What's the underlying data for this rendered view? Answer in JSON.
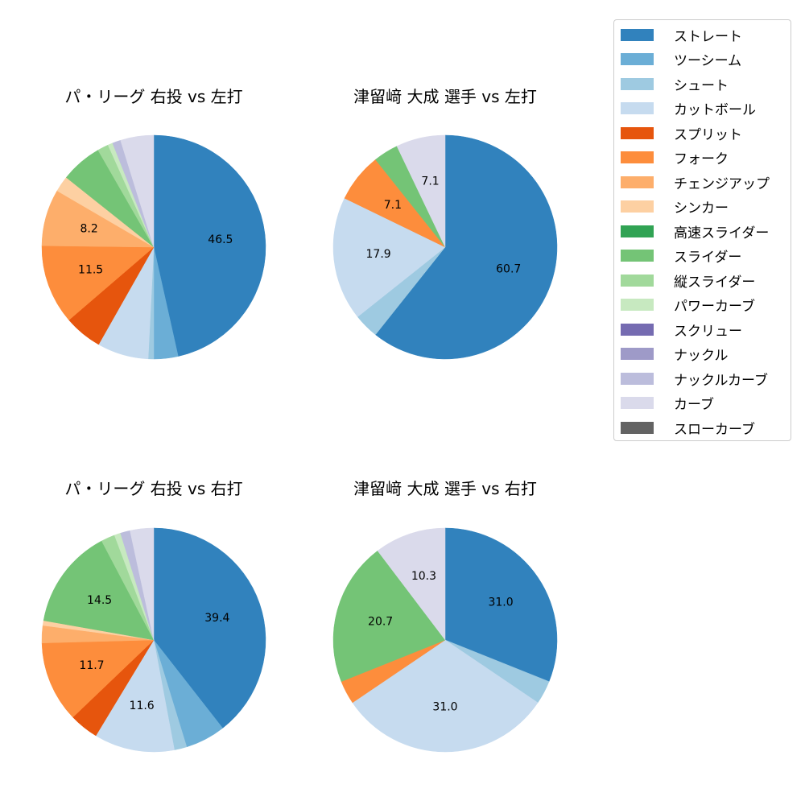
{
  "legend": {
    "items": [
      {
        "label": "ストレート",
        "color": "#3182bd"
      },
      {
        "label": "ツーシーム",
        "color": "#6baed6"
      },
      {
        "label": "シュート",
        "color": "#9ecae1"
      },
      {
        "label": "カットボール",
        "color": "#c6dbef"
      },
      {
        "label": "スプリット",
        "color": "#e6550d"
      },
      {
        "label": "フォーク",
        "color": "#fd8d3c"
      },
      {
        "label": "チェンジアップ",
        "color": "#fdae6b"
      },
      {
        "label": "シンカー",
        "color": "#fdd0a2"
      },
      {
        "label": "高速スライダー",
        "color": "#31a354"
      },
      {
        "label": "スライダー",
        "color": "#74c476"
      },
      {
        "label": "縦スライダー",
        "color": "#a1d99b"
      },
      {
        "label": "パワーカーブ",
        "color": "#c7e9c0"
      },
      {
        "label": "スクリュー",
        "color": "#756bb1"
      },
      {
        "label": "ナックル",
        "color": "#9e9ac8"
      },
      {
        "label": "ナックルカーブ",
        "color": "#bcbddc"
      },
      {
        "label": "カーブ",
        "color": "#dadaeb"
      },
      {
        "label": "スローカーブ",
        "color": "#636363"
      }
    ]
  },
  "chart_data": [
    {
      "type": "pie",
      "title": "パ・リーグ 右投 vs 左打",
      "labels": [
        "ストレート",
        "ツーシーム",
        "シュート",
        "カットボール",
        "スプリット",
        "フォーク",
        "チェンジアップ",
        "シンカー",
        "スライダー",
        "縦スライダー",
        "パワーカーブ",
        "ナックルカーブ",
        "カーブ"
      ],
      "values": [
        46.5,
        3.5,
        0.8,
        7.4,
        5.5,
        11.5,
        8.2,
        2.3,
        6.0,
        1.6,
        0.7,
        1.2,
        4.8
      ],
      "shown_labels": [
        "46.5",
        "",
        "",
        "",
        "",
        "11.5",
        "8.2",
        "",
        "",
        "",
        "",
        "",
        ""
      ]
    },
    {
      "type": "pie",
      "title": "津留﨑 大成 選手 vs 左打",
      "labels": [
        "ストレート",
        "シュート",
        "カットボール",
        "フォーク",
        "スライダー",
        "カーブ"
      ],
      "values": [
        60.7,
        3.6,
        17.9,
        7.1,
        3.6,
        7.1
      ],
      "shown_labels": [
        "60.7",
        "",
        "17.9",
        "7.1",
        "",
        "7.1"
      ]
    },
    {
      "type": "pie",
      "title": "パ・リーグ 右投 vs 右打",
      "labels": [
        "ストレート",
        "ツーシーム",
        "シュート",
        "カットボール",
        "スプリット",
        "フォーク",
        "チェンジアップ",
        "シンカー",
        "スライダー",
        "縦スライダー",
        "パワーカーブ",
        "ナックルカーブ",
        "カーブ"
      ],
      "values": [
        39.4,
        5.8,
        1.8,
        11.6,
        4.2,
        11.7,
        2.5,
        0.7,
        14.5,
        2.0,
        0.9,
        1.4,
        3.4
      ],
      "shown_labels": [
        "39.4",
        "",
        "",
        "11.6",
        "",
        "11.7",
        "",
        "",
        "14.5",
        "",
        "",
        "",
        ""
      ]
    },
    {
      "type": "pie",
      "title": "津留﨑 大成 選手 vs 右打",
      "labels": [
        "ストレート",
        "シュート",
        "カットボール",
        "フォーク",
        "スライダー",
        "カーブ"
      ],
      "values": [
        31.0,
        3.4,
        31.0,
        3.4,
        20.7,
        10.3
      ],
      "shown_labels": [
        "31.0",
        "",
        "31.0",
        "",
        "20.7",
        "10.3"
      ]
    }
  ]
}
